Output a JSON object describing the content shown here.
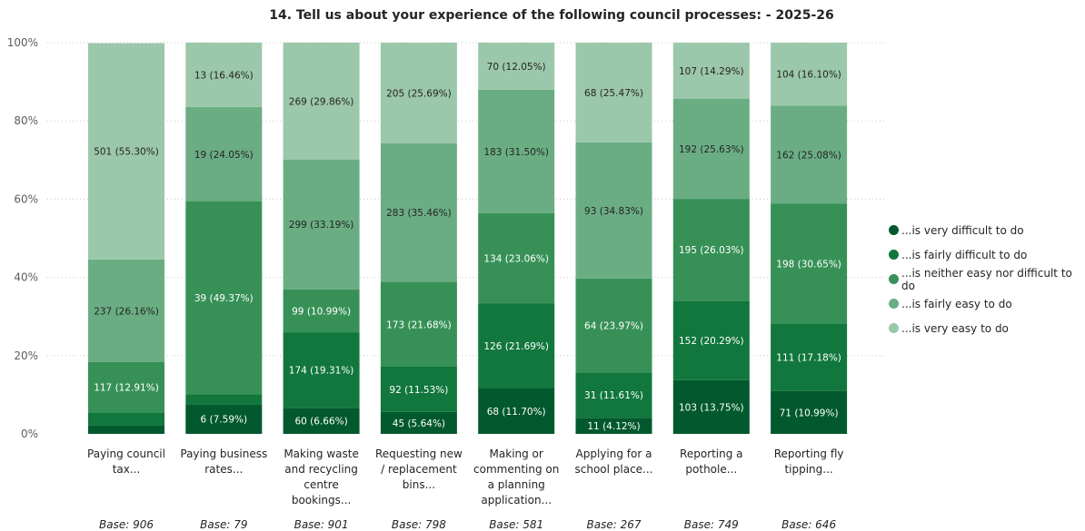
{
  "chart_data": {
    "type": "bar",
    "stacked": true,
    "percent": true,
    "title": "14. Tell us about your experience of the following council processes: - 2025-26",
    "ylim": [
      0,
      100
    ],
    "yticks": [
      "0%",
      "20%",
      "40%",
      "60%",
      "80%",
      "100%"
    ],
    "grid": true,
    "legend_position": "right",
    "categories": [
      [
        "Paying council",
        "tax..."
      ],
      [
        "Paying business",
        "rates..."
      ],
      [
        "Making waste",
        "and recycling",
        "centre",
        "bookings..."
      ],
      [
        "Requesting new",
        "/ replacement",
        "bins..."
      ],
      [
        "Making or",
        "commenting on",
        "a planning",
        "application..."
      ],
      [
        "Applying for a",
        "school place..."
      ],
      [
        "Reporting a",
        "pothole..."
      ],
      [
        "Reporting fly",
        "tipping..."
      ]
    ],
    "bases": [
      "Base: 906",
      "Base: 79",
      "Base: 901",
      "Base: 798",
      "Base: 581",
      "Base: 267",
      "Base: 749",
      "Base: 646"
    ],
    "series": [
      {
        "name": "...is very difficult to do",
        "color": "#01592d",
        "values": [
          2.1,
          7.59,
          6.66,
          5.64,
          11.7,
          4.12,
          13.75,
          10.99
        ],
        "labels": [
          "",
          "6 (7.59%)",
          "60 (6.66%)",
          "45 (5.64%)",
          "68 (11.70%)",
          "11 (4.12%)",
          "103 (13.75%)",
          "71 (10.99%)"
        ]
      },
      {
        "name": "...is fairly difficult to do",
        "color": "#11773c",
        "values": [
          3.4,
          2.53,
          19.31,
          11.53,
          21.69,
          11.61,
          20.29,
          17.18
        ],
        "labels": [
          "",
          "",
          "174 (19.31%)",
          "92 (11.53%)",
          "126 (21.69%)",
          "31 (11.61%)",
          "152 (20.29%)",
          "111 (17.18%)"
        ]
      },
      {
        "name": "...is neither easy nor difficult to do",
        "color": "#379157",
        "values": [
          12.91,
          49.37,
          10.99,
          21.68,
          23.06,
          23.97,
          26.03,
          30.65
        ],
        "labels": [
          "117 (12.91%)",
          "39 (49.37%)",
          "99 (10.99%)",
          "173 (21.68%)",
          "134 (23.06%)",
          "64 (23.97%)",
          "195 (26.03%)",
          "198 (30.65%)"
        ]
      },
      {
        "name": "...is fairly easy to do",
        "color": "#6aad83",
        "values": [
          26.16,
          24.05,
          33.19,
          35.46,
          31.5,
          34.83,
          25.63,
          25.08
        ],
        "labels": [
          "237 (26.16%)",
          "19 (24.05%)",
          "299 (33.19%)",
          "283 (35.46%)",
          "183 (31.50%)",
          "93 (34.83%)",
          "192 (25.63%)",
          "162 (25.08%)"
        ]
      },
      {
        "name": "...is very easy to do",
        "color": "#9bc8aa",
        "values": [
          55.3,
          16.46,
          29.86,
          25.69,
          12.05,
          25.47,
          14.29,
          16.1
        ],
        "labels": [
          "501 (55.30%)",
          "13 (16.46%)",
          "269 (29.86%)",
          "205 (25.69%)",
          "70 (12.05%)",
          "68 (25.47%)",
          "107 (14.29%)",
          "104 (16.10%)"
        ]
      }
    ]
  },
  "legend_order": [
    0,
    1,
    2,
    3,
    4
  ]
}
